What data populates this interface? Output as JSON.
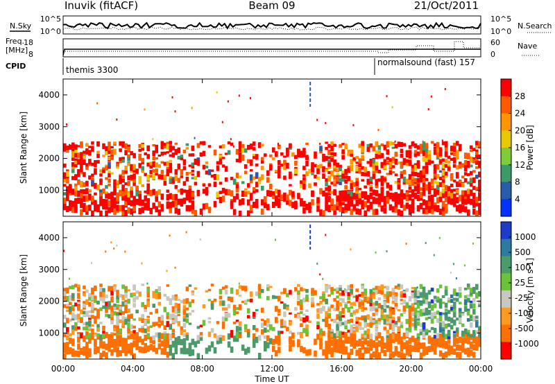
{
  "header": {
    "station": "Inuvik (fitACF)",
    "beam": "Beam 09",
    "date": "21/Oct/2011"
  },
  "panels": {
    "nsky_label": "N.Sky",
    "nsearch_label": "N.Search",
    "noise_ticks_left": [
      "10^5",
      "10^0"
    ],
    "noise_ticks_right": [
      "10^5",
      "10^0"
    ],
    "freq_label_1": "Freq.",
    "freq_label_2": "[MHz]",
    "freq_ticks": [
      "18",
      "8"
    ],
    "nave_label": "Nave",
    "nave_ticks": [
      "60",
      "0"
    ],
    "cpid_label": "CPID",
    "cpid_segments": [
      "themis 3300",
      "normalsound (fast) 157"
    ]
  },
  "chart_data": [
    {
      "type": "heatmap",
      "name": "power",
      "ylabel": "Slant Range [km]",
      "yticks": [
        "4000",
        "3000",
        "2000",
        "1000"
      ],
      "ylim": [
        180,
        4500
      ],
      "colorbar_title": "Power [dB]",
      "colorbar_ticks": [
        "28",
        "24",
        "20",
        "16",
        "12",
        "8",
        "4"
      ],
      "colorbar_colors": [
        "#ff0000",
        "#ff5a00",
        "#ff9600",
        "#e8c800",
        "#7fcc3a",
        "#3a9a6a",
        "#2a5cae",
        "#0033ff"
      ],
      "xlim": [
        "00:00",
        "24:00"
      ]
    },
    {
      "type": "heatmap",
      "name": "velocity",
      "ylabel": "Slant Range [km]",
      "yticks": [
        "4000",
        "3000",
        "2000",
        "1000"
      ],
      "ylim": [
        180,
        4500
      ],
      "colorbar_title": "Velocity [m s-1]",
      "colorbar_ticks": [
        "1000",
        "500",
        "100",
        "25",
        "-25",
        "-100",
        "-500",
        "-1000"
      ],
      "colorbar_colors": [
        "#1a3cc8",
        "#2c7aa0",
        "#4a9a6a",
        "#6cc23a",
        "#c8c8c0",
        "#ff9a20",
        "#ff7000",
        "#ff0000"
      ],
      "xlim": [
        "00:00",
        "24:00"
      ]
    }
  ],
  "x_axis": {
    "ticks": [
      "00:00",
      "04:00",
      "08:00",
      "12:00",
      "16:00",
      "20:00",
      "00:00"
    ],
    "label": "Time UT"
  }
}
